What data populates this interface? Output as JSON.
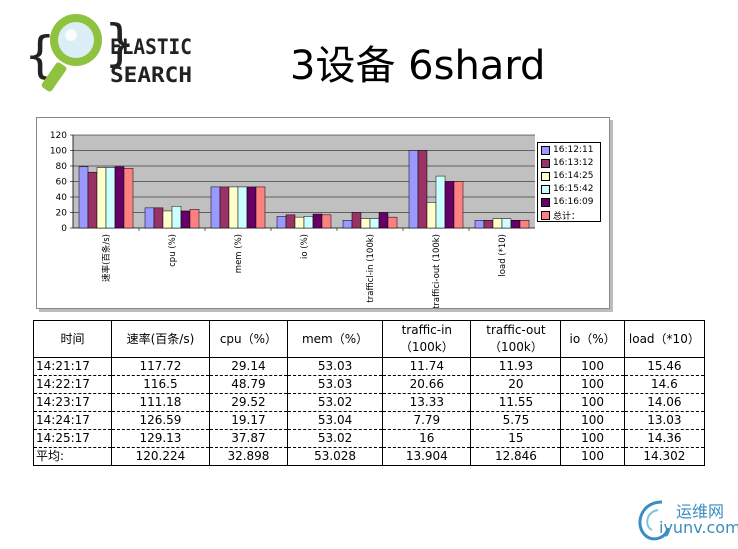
{
  "logo": {
    "line1": "ELASTIC",
    "line2": "SEARCH"
  },
  "title": "3设备 6shard",
  "chart_data": {
    "type": "bar",
    "categories": [
      "速率(百条/s)",
      "cpu (%)",
      "mem (%)",
      "io (%)",
      "trafficl-in (100k)",
      "traffici-out (100k)",
      "load (*10)"
    ],
    "series": [
      {
        "name": "16:12:11",
        "values": [
          79,
          26,
          53,
          15,
          10,
          100,
          10
        ]
      },
      {
        "name": "16:13:12",
        "values": [
          72,
          26,
          53,
          17,
          20,
          100,
          10
        ]
      },
      {
        "name": "16:14:25",
        "values": [
          78,
          22,
          53,
          14,
          12,
          33,
          12
        ]
      },
      {
        "name": "16:15:42",
        "values": [
          78,
          28,
          53,
          15,
          12,
          67,
          12
        ]
      },
      {
        "name": "16:16:09",
        "values": [
          79,
          22,
          53,
          18,
          20,
          60,
          10
        ]
      },
      {
        "name": "总计：",
        "values": [
          77,
          24,
          53,
          17,
          14,
          60,
          10
        ]
      }
    ],
    "colors": [
      "#9999ff",
      "#993366",
      "#ffffcc",
      "#ccffff",
      "#660066",
      "#ff8080"
    ],
    "ylim": [
      0,
      120
    ],
    "yticks": [
      0,
      20,
      40,
      60,
      80,
      100,
      120
    ],
    "grid": true,
    "legend": "right",
    "plot_background": "#c0c0c0"
  },
  "table": {
    "headers": [
      [
        "时间"
      ],
      [
        "速率(百条/s)"
      ],
      [
        "cpu（%）"
      ],
      [
        "mem（%）"
      ],
      [
        "traffic-in",
        "（100k）"
      ],
      [
        "traffic-out",
        "（100k）"
      ],
      [
        "io（%）"
      ],
      [
        "load（*10）"
      ]
    ],
    "rows": [
      [
        "14:21:17",
        "117.72",
        "29.14",
        "53.03",
        "11.74",
        "11.93",
        "100",
        "15.46"
      ],
      [
        "14:22:17",
        "116.5",
        "48.79",
        "53.03",
        "20.66",
        "20",
        "100",
        "14.6"
      ],
      [
        "14:23:17",
        "111.18",
        "29.52",
        "53.02",
        "13.33",
        "11.55",
        "100",
        "14.06"
      ],
      [
        "14:24:17",
        "126.59",
        "19.17",
        "53.04",
        "7.79",
        "5.75",
        "100",
        "13.03"
      ],
      [
        "14:25:17",
        "129.13",
        "37.87",
        "53.02",
        "16",
        "15",
        "100",
        "14.36"
      ],
      [
        "平均:",
        "120.224",
        "32.898",
        "53.028",
        "13.904",
        "12.846",
        "100",
        "14.302"
      ]
    ]
  },
  "watermark": {
    "cn": "运维网",
    "en": "iyunv.com"
  }
}
